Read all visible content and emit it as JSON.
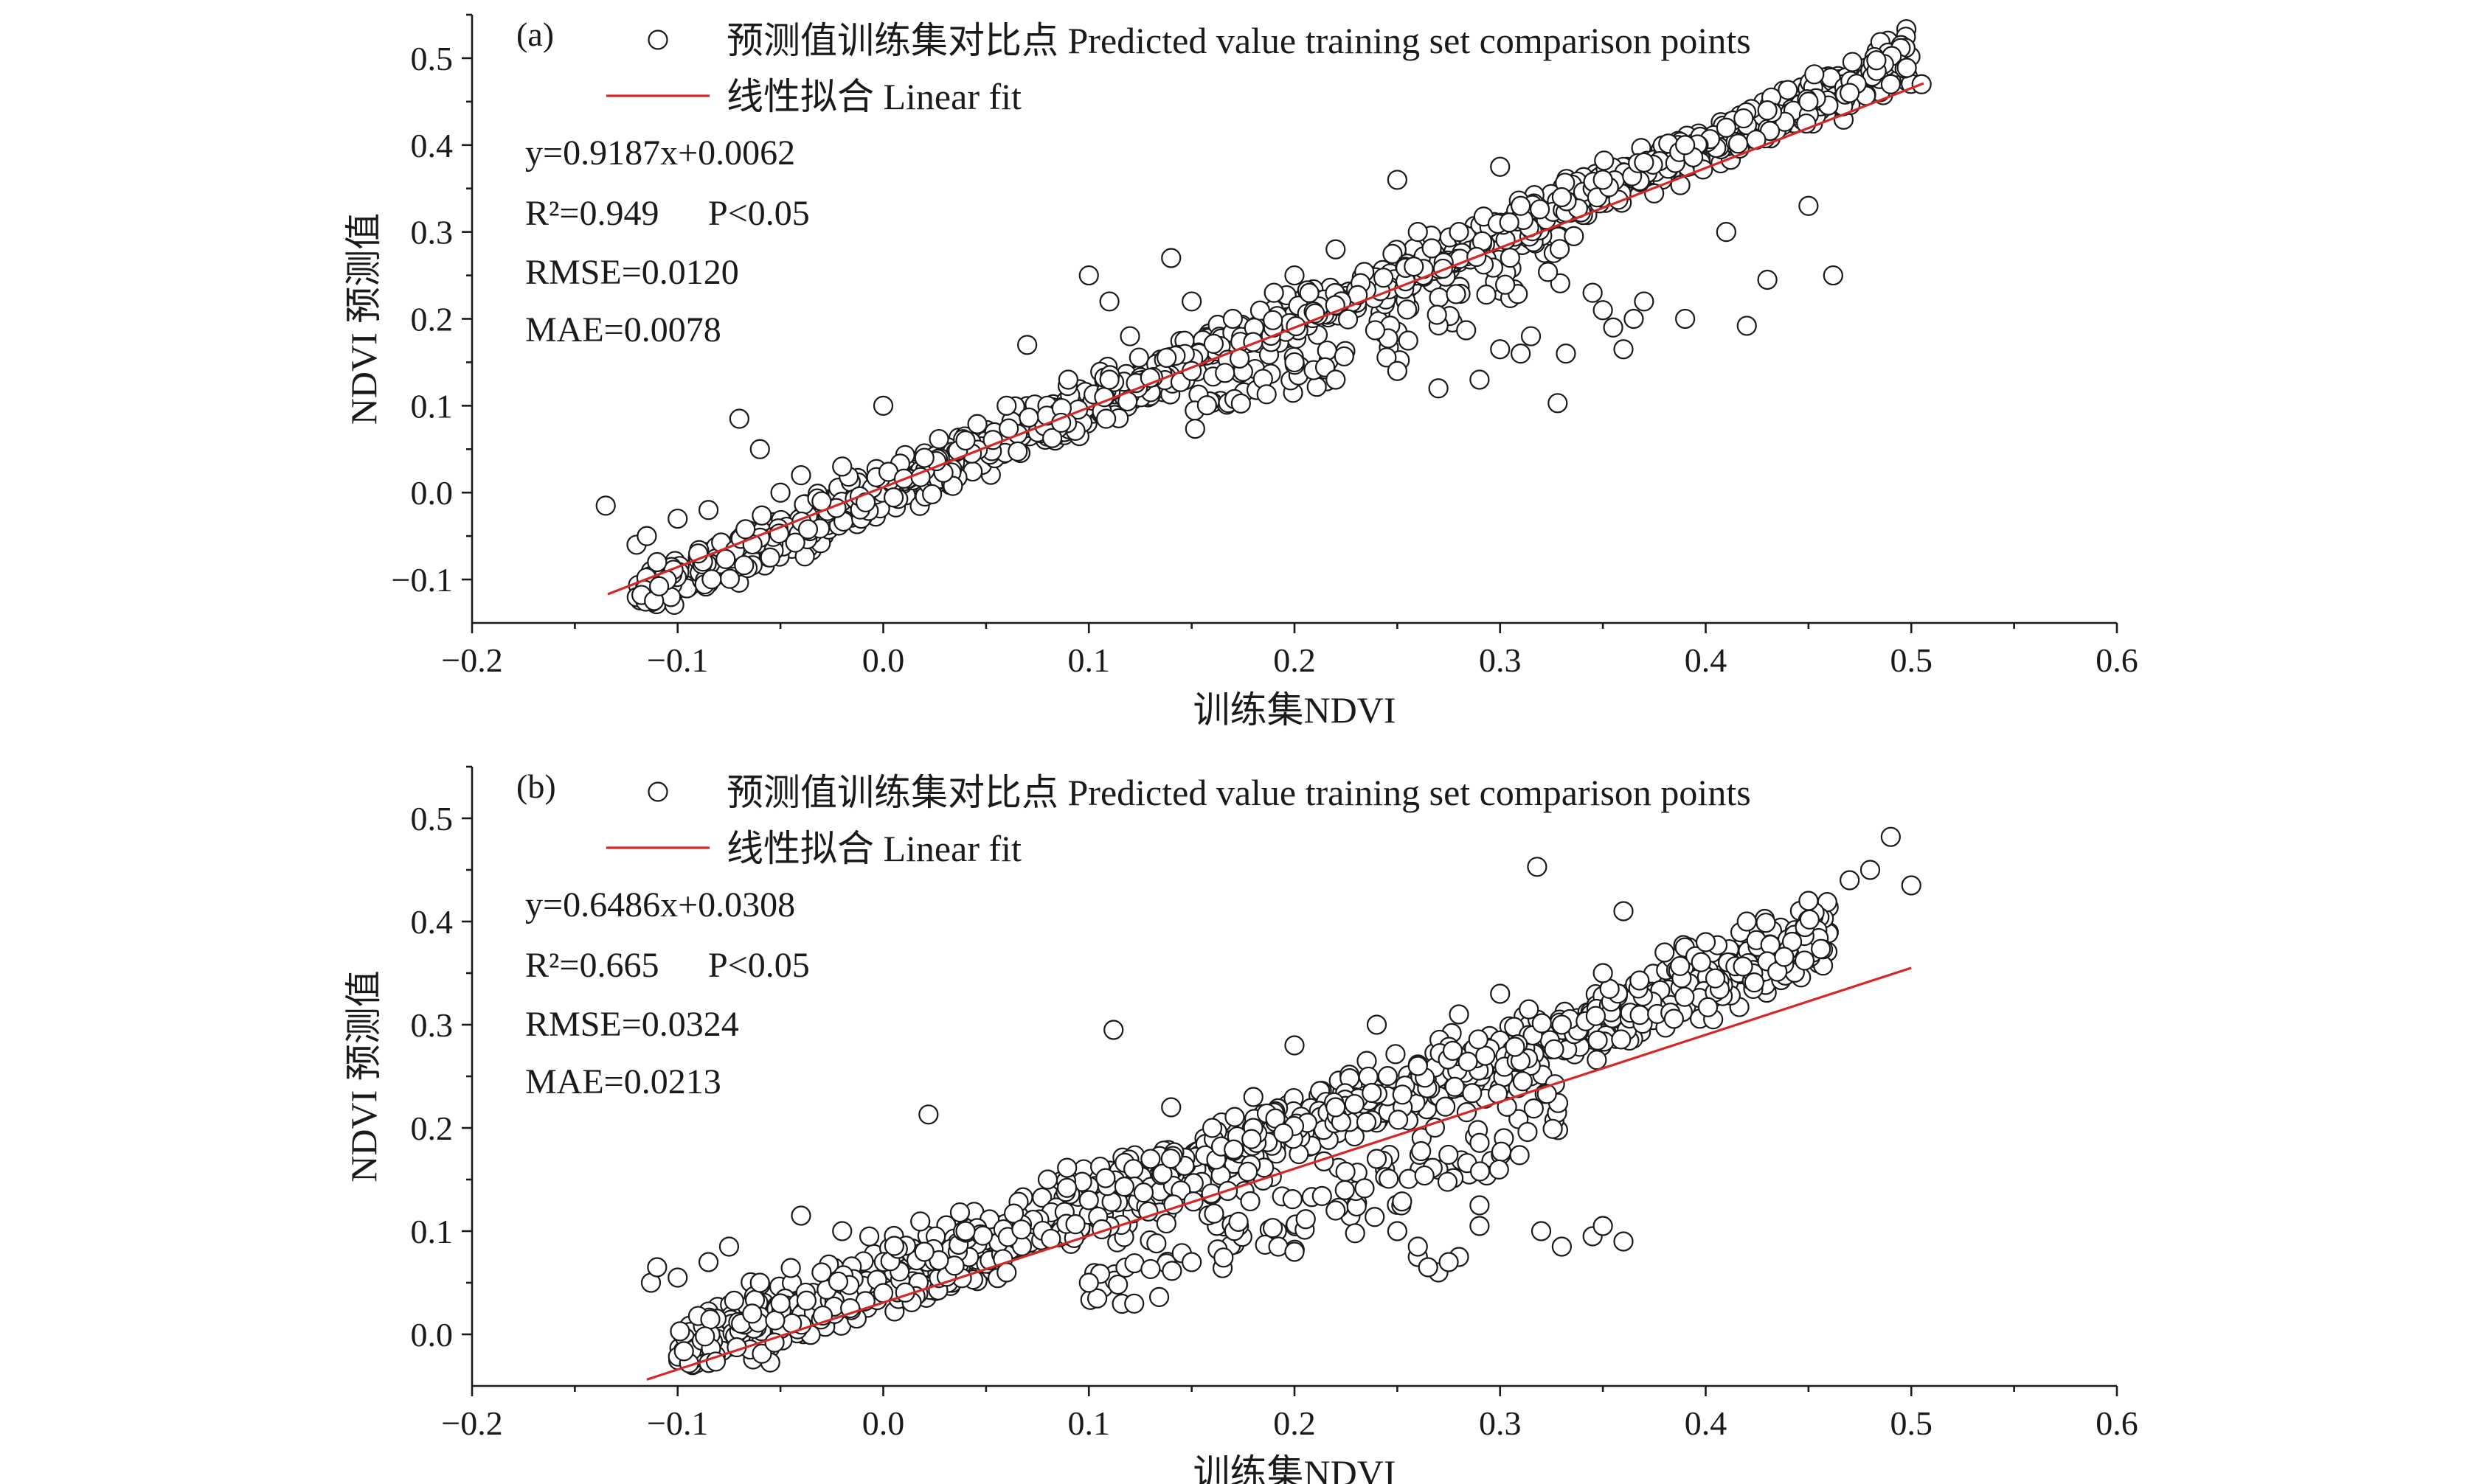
{
  "chart_data": [
    {
      "type": "scatter",
      "panel_label": "(a)",
      "xlabel": "训练集NDVI",
      "ylabel": "NDVI 预测值",
      "xlim": [
        -0.2,
        0.6
      ],
      "ylim": [
        -0.15,
        0.55
      ],
      "x_ticks": [
        -0.2,
        -0.1,
        0.0,
        0.1,
        0.2,
        0.3,
        0.4,
        0.5,
        0.6
      ],
      "x_tick_labels": [
        "−0.2",
        "−0.1",
        "0.0",
        "0.1",
        "0.2",
        "0.3",
        "0.4",
        "0.5",
        "0.6"
      ],
      "y_ticks": [
        -0.1,
        0.0,
        0.1,
        0.2,
        0.3,
        0.4,
        0.5
      ],
      "y_tick_labels": [
        "−0.1",
        "0.0",
        "0.1",
        "0.2",
        "0.3",
        "0.4",
        "0.5"
      ],
      "legend": {
        "position": "top-left",
        "points_label": "预测值训练集对比点 Predicted value training set comparison points",
        "line_label": "线性拟合 Linear fit"
      },
      "stats": {
        "equation": "y=0.9187x+0.0062",
        "r2": "R²=0.949",
        "p": "P<0.05",
        "rmse": "RMSE=0.0120",
        "mae": "MAE=0.0078"
      },
      "fit": {
        "slope": 0.9187,
        "intercept": 0.0062,
        "x_range": [
          -0.134,
          0.506
        ]
      },
      "series": [
        {
          "points": [
            [
              -0.135,
              -0.015
            ],
            [
              -0.12,
              -0.06
            ],
            [
              -0.11,
              -0.08
            ],
            [
              -0.115,
              -0.05
            ],
            [
              -0.1,
              -0.03
            ],
            [
              -0.09,
              -0.07
            ],
            [
              -0.085,
              -0.02
            ],
            [
              -0.07,
              0.085
            ],
            [
              -0.06,
              0.05
            ],
            [
              -0.05,
              0.0
            ],
            [
              -0.04,
              0.02
            ],
            [
              -0.03,
              -0.01
            ],
            [
              -0.02,
              0.03
            ],
            [
              0.0,
              0.1
            ],
            [
              0.02,
              0.04
            ],
            [
              0.04,
              0.06
            ],
            [
              0.06,
              0.1
            ],
            [
              0.07,
              0.17
            ],
            [
              0.09,
              0.13
            ],
            [
              0.1,
              0.25
            ],
            [
              0.11,
              0.22
            ],
            [
              0.12,
              0.18
            ],
            [
              0.14,
              0.27
            ],
            [
              0.15,
              0.22
            ],
            [
              0.17,
              0.2
            ],
            [
              0.19,
              0.23
            ],
            [
              0.2,
              0.25
            ],
            [
              0.22,
              0.28
            ],
            [
              0.25,
              0.36
            ],
            [
              0.26,
              0.3
            ],
            [
              0.28,
              0.3
            ],
            [
              0.3,
              0.375
            ],
            [
              0.31,
              0.33
            ],
            [
              0.33,
              0.34
            ],
            [
              0.35,
              0.36
            ],
            [
              0.37,
              0.38
            ],
            [
              0.39,
              0.4
            ],
            [
              0.41,
              0.42
            ],
            [
              0.43,
              0.44
            ],
            [
              0.45,
              0.45
            ],
            [
              0.47,
              0.46
            ],
            [
              0.49,
              0.47
            ],
            [
              0.505,
              0.47
            ],
            [
              0.11,
              0.13
            ],
            [
              0.15,
              0.14
            ],
            [
              0.2,
              0.15
            ],
            [
              0.22,
              0.13
            ],
            [
              0.25,
              0.14
            ],
            [
              0.27,
              0.12
            ],
            [
              0.29,
              0.13
            ],
            [
              0.3,
              0.165
            ],
            [
              0.31,
              0.16
            ],
            [
              0.315,
              0.18
            ],
            [
              0.328,
              0.103
            ],
            [
              0.332,
              0.16
            ],
            [
              0.345,
              0.23
            ],
            [
              0.35,
              0.21
            ],
            [
              0.355,
              0.19
            ],
            [
              0.36,
              0.165
            ],
            [
              0.365,
              0.2
            ],
            [
              0.37,
              0.22
            ],
            [
              0.39,
              0.2
            ],
            [
              0.41,
              0.3
            ],
            [
              0.43,
              0.245
            ],
            [
              0.45,
              0.33
            ],
            [
              0.42,
              0.192
            ],
            [
              0.462,
              0.25
            ]
          ]
        }
      ]
    },
    {
      "type": "scatter",
      "panel_label": "(b)",
      "xlabel": "训练集NDVI",
      "ylabel": "NDVI 预测值",
      "xlim": [
        -0.2,
        0.6
      ],
      "ylim": [
        -0.05,
        0.55
      ],
      "x_ticks": [
        -0.2,
        -0.1,
        0.0,
        0.1,
        0.2,
        0.3,
        0.4,
        0.5,
        0.6
      ],
      "x_tick_labels": [
        "−0.2",
        "−0.1",
        "0.0",
        "0.1",
        "0.2",
        "0.3",
        "0.4",
        "0.5",
        "0.6"
      ],
      "y_ticks": [
        0.0,
        0.1,
        0.2,
        0.3,
        0.4,
        0.5
      ],
      "y_tick_labels": [
        "0.0",
        "0.1",
        "0.2",
        "0.3",
        "0.4",
        "0.5"
      ],
      "legend": {
        "position": "top-left",
        "points_label": "预测值训练集对比点 Predicted value training set comparison points",
        "line_label": "线性拟合 Linear fit"
      },
      "stats": {
        "equation": "y=0.6486x+0.0308",
        "r2": "R²=0.665",
        "p": "P<0.05",
        "rmse": "RMSE=0.0324",
        "mae": "MAE=0.0213"
      },
      "fit": {
        "slope": 0.6486,
        "intercept": 0.0308,
        "x_range": [
          -0.115,
          0.5
        ]
      },
      "series": [
        {
          "points": [
            [
              -0.113,
              0.05
            ],
            [
              -0.11,
              0.065
            ],
            [
              -0.1,
              0.055
            ],
            [
              -0.085,
              0.07
            ],
            [
              -0.075,
              0.085
            ],
            [
              -0.06,
              0.05
            ],
            [
              -0.05,
              0.03
            ],
            [
              -0.04,
              0.115
            ],
            [
              -0.03,
              0.06
            ],
            [
              -0.02,
              0.1
            ],
            [
              0.0,
              0.04
            ],
            [
              0.02,
              0.08
            ],
            [
              0.022,
              0.213
            ],
            [
              0.04,
              0.1
            ],
            [
              0.06,
              0.06
            ],
            [
              0.08,
              0.15
            ],
            [
              0.1,
              0.13
            ],
            [
              0.112,
              0.295
            ],
            [
              0.13,
              0.17
            ],
            [
              0.14,
              0.22
            ],
            [
              0.16,
              0.2
            ],
            [
              0.18,
              0.23
            ],
            [
              0.2,
              0.28
            ],
            [
              0.22,
              0.22
            ],
            [
              0.24,
              0.3
            ],
            [
              0.26,
              0.26
            ],
            [
              0.28,
              0.31
            ],
            [
              0.3,
              0.33
            ],
            [
              0.318,
              0.453
            ],
            [
              0.33,
              0.3
            ],
            [
              0.35,
              0.35
            ],
            [
              0.36,
              0.41
            ],
            [
              0.38,
              0.37
            ],
            [
              0.4,
              0.38
            ],
            [
              0.42,
              0.4
            ],
            [
              0.45,
              0.42
            ],
            [
              0.47,
              0.44
            ],
            [
              0.48,
              0.45
            ],
            [
              0.49,
              0.482
            ],
            [
              0.5,
              0.435
            ],
            [
              0.1,
              0.05
            ],
            [
              0.15,
              0.07
            ],
            [
              0.2,
              0.08
            ],
            [
              0.22,
              0.12
            ],
            [
              0.25,
              0.1
            ],
            [
              0.24,
              0.17
            ],
            [
              0.26,
              0.075
            ],
            [
              0.27,
              0.06
            ],
            [
              0.28,
              0.075
            ],
            [
              0.29,
              0.105
            ],
            [
              0.29,
              0.125
            ],
            [
              0.32,
              0.1
            ],
            [
              0.33,
              0.085
            ],
            [
              0.345,
              0.095
            ],
            [
              0.35,
              0.105
            ],
            [
              0.36,
              0.09
            ],
            [
              0.265,
              0.065
            ],
            [
              0.275,
              0.07
            ],
            [
              0.26,
              0.085
            ]
          ]
        }
      ]
    }
  ]
}
